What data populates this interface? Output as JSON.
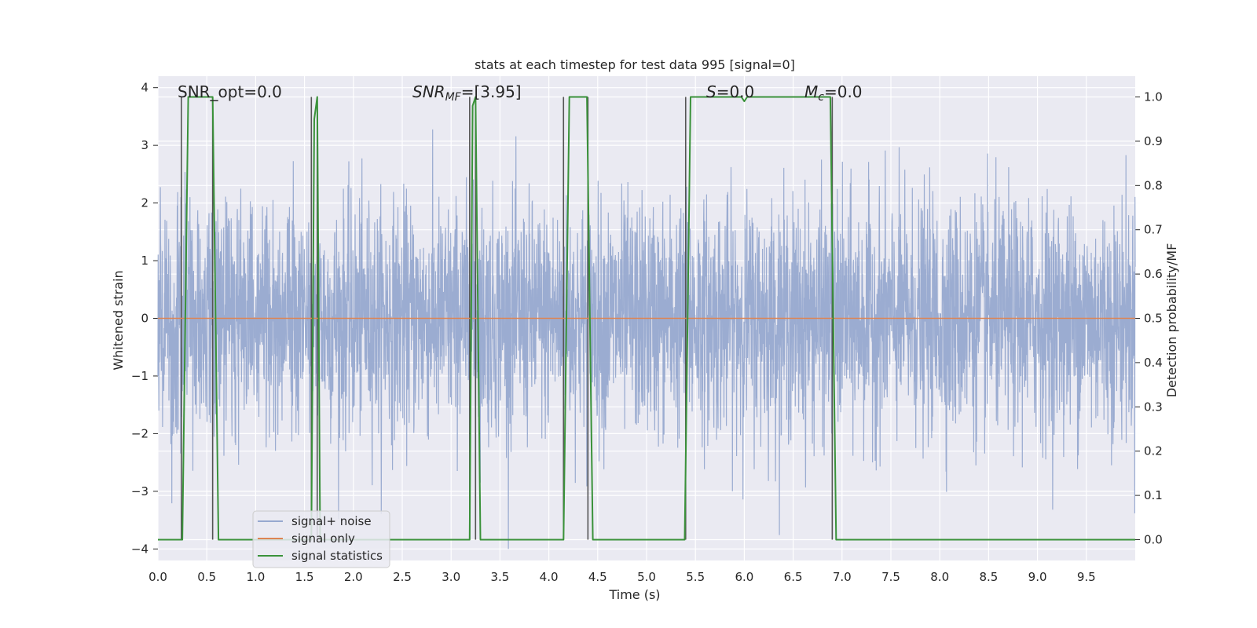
{
  "chart_data": {
    "type": "line",
    "title": "stats at each timestep for test data 995 [signal=0]",
    "xlabel": "Time (s)",
    "ylabel": "Whitened strain",
    "y2label": "Detection probability/MF",
    "xlim": [
      0.0,
      10.0
    ],
    "ylim": [
      -4.2,
      4.2
    ],
    "y2lim": [
      -0.047,
      1.047
    ],
    "x_ticks": [
      "0.0",
      "0.5",
      "1.0",
      "1.5",
      "2.0",
      "2.5",
      "3.0",
      "3.5",
      "4.0",
      "4.5",
      "5.0",
      "5.5",
      "6.0",
      "6.5",
      "7.0",
      "7.5",
      "8.0",
      "8.5",
      "9.0",
      "9.5"
    ],
    "y_ticks": [
      "−4",
      "−3",
      "−2",
      "−1",
      "0",
      "1",
      "2",
      "3",
      "4"
    ],
    "y2_ticks": [
      "0.0",
      "0.1",
      "0.2",
      "0.3",
      "0.4",
      "0.5",
      "0.6",
      "0.7",
      "0.8",
      "0.9",
      "1.0"
    ],
    "grid": true,
    "legend_position": "lower-left",
    "annotations": {
      "snr_opt": "SNR_opt=0.0",
      "snr_mf": "SNRMF=[3.95]",
      "snr_mf_main": "SNR",
      "snr_mf_sub": "MF",
      "snr_mf_rest": "=[3.95]",
      "s": "S=0.0",
      "s_main": "S",
      "s_rest": "=0.0",
      "mc": "Mc=0.0",
      "mc_main": "M",
      "mc_sub": "c",
      "mc_rest": "=0.0"
    },
    "series": [
      {
        "name": "signal+ noise",
        "color": "#97a9cf",
        "axis": "left",
        "description_stats": {
          "mean": 0.0,
          "std": 1.0,
          "min": -4.0,
          "max": 3.8
        }
      },
      {
        "name": "signal only",
        "color": "#dd8452",
        "axis": "left",
        "x": [
          0.0,
          10.0
        ],
        "y": [
          0.0,
          0.0
        ]
      },
      {
        "name": "signal statistics",
        "color": "#3a923a",
        "axis": "right",
        "x": [
          0.0,
          0.25,
          0.31,
          0.56,
          0.62,
          1.57,
          1.6,
          1.63,
          1.66,
          3.19,
          3.22,
          3.25,
          3.3,
          4.15,
          4.21,
          4.39,
          4.45,
          5.39,
          5.45,
          5.97,
          6.0,
          6.03,
          6.88,
          6.94,
          10.0
        ],
        "y": [
          0.0,
          0.0,
          1.0,
          1.0,
          0.0,
          0.0,
          0.95,
          1.0,
          0.0,
          0.0,
          0.98,
          1.0,
          0.0,
          0.0,
          1.0,
          1.0,
          0.0,
          0.0,
          1.0,
          1.0,
          0.99,
          1.0,
          1.0,
          0.0,
          0.0
        ]
      }
    ],
    "vlines": {
      "color": "#555555",
      "x": [
        0.24,
        0.56,
        1.57,
        1.63,
        3.19,
        3.25,
        4.15,
        4.4,
        5.4,
        6.9
      ]
    }
  }
}
